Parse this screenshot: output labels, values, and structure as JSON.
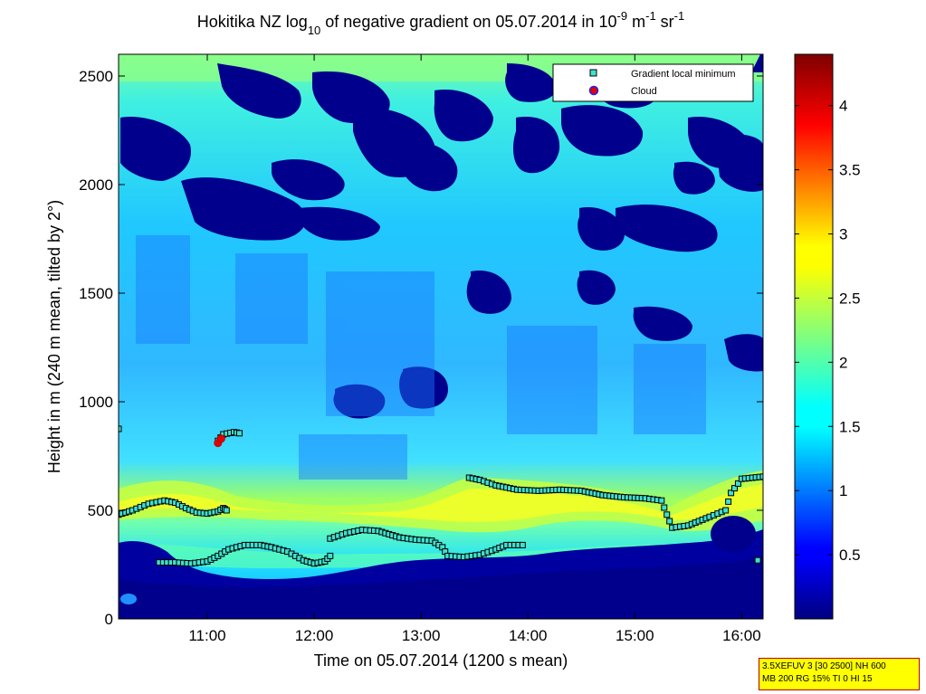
{
  "chart_data": {
    "type": "heatmap",
    "title": {
      "pre": "Hokitika NZ log",
      "sub": "10",
      "mid": " of negative gradient on 05.07.2014 in 10",
      "sup1": "-9",
      "mid2": " m",
      "sup2": "-1",
      "mid3": " sr",
      "sup3": "-1"
    },
    "xlabel": "Time on 05.07.2014 (1200 s mean)",
    "ylabel": "Height in m (240 m mean, tilted by 2°)",
    "xlim": [
      10.17,
      16.2
    ],
    "ylim": [
      0,
      2600
    ],
    "x_ticks": [
      {
        "v": 11,
        "label": "11:00"
      },
      {
        "v": 12,
        "label": "12:00"
      },
      {
        "v": 13,
        "label": "13:00"
      },
      {
        "v": 14,
        "label": "14:00"
      },
      {
        "v": 15,
        "label": "15:00"
      },
      {
        "v": 16,
        "label": "16:00"
      }
    ],
    "y_ticks": [
      0,
      500,
      1000,
      1500,
      2000,
      2500
    ],
    "colorbar": {
      "range": [
        0,
        4.4
      ],
      "ticks": [
        0.5,
        1,
        1.5,
        2,
        2.5,
        3,
        3.5,
        4
      ],
      "colormap": "jet"
    },
    "legend": {
      "position": "top-right",
      "entries": [
        {
          "label": "Gradient local minimum",
          "marker": "square",
          "color": "#40e0d0"
        },
        {
          "label": "Cloud",
          "marker": "circle",
          "color": "#e00000"
        }
      ]
    },
    "series": [
      {
        "name": "Gradient local minimum",
        "segments": [
          [
            [
              10.17,
              480
            ],
            [
              10.3,
              500
            ],
            [
              10.45,
              530
            ],
            [
              10.6,
              545
            ],
            [
              10.7,
              535
            ],
            [
              10.8,
              510
            ],
            [
              10.9,
              490
            ],
            [
              11.0,
              485
            ],
            [
              11.1,
              495
            ],
            [
              11.15,
              510
            ],
            [
              11.18,
              500
            ]
          ],
          [
            [
              10.17,
              875
            ]
          ],
          [
            [
              10.55,
              260
            ],
            [
              10.7,
              260
            ],
            [
              10.85,
              255
            ],
            [
              11.0,
              265
            ],
            [
              11.1,
              290
            ],
            [
              11.2,
              320
            ],
            [
              11.35,
              340
            ],
            [
              11.5,
              340
            ],
            [
              11.6,
              330
            ],
            [
              11.75,
              310
            ],
            [
              11.9,
              270
            ],
            [
              12.0,
              255
            ],
            [
              12.1,
              265
            ],
            [
              12.15,
              290
            ]
          ],
          [
            [
              11.1,
              820
            ],
            [
              11.15,
              850
            ],
            [
              11.25,
              860
            ],
            [
              11.3,
              855
            ]
          ],
          [
            [
              12.15,
              370
            ],
            [
              12.3,
              395
            ],
            [
              12.45,
              410
            ],
            [
              12.6,
              405
            ],
            [
              12.8,
              375
            ],
            [
              12.95,
              365
            ],
            [
              13.1,
              360
            ],
            [
              13.2,
              330
            ],
            [
              13.25,
              290
            ],
            [
              13.4,
              285
            ],
            [
              13.55,
              295
            ],
            [
              13.7,
              320
            ],
            [
              13.8,
              340
            ],
            [
              13.95,
              340
            ]
          ],
          [
            [
              13.45,
              650
            ],
            [
              13.55,
              640
            ],
            [
              13.7,
              615
            ],
            [
              13.9,
              595
            ],
            [
              14.1,
              590
            ],
            [
              14.3,
              595
            ],
            [
              14.5,
              590
            ],
            [
              14.7,
              570
            ],
            [
              14.9,
              560
            ],
            [
              15.1,
              555
            ],
            [
              15.25,
              545
            ],
            [
              15.3,
              480
            ],
            [
              15.35,
              420
            ],
            [
              15.5,
              430
            ],
            [
              15.7,
              470
            ],
            [
              15.85,
              500
            ],
            [
              15.9,
              580
            ],
            [
              16.0,
              645
            ],
            [
              16.1,
              650
            ],
            [
              16.2,
              655
            ]
          ],
          [
            [
              16.15,
              270
            ]
          ]
        ]
      },
      {
        "name": "Cloud",
        "points": [
          [
            11.1,
            810
          ],
          [
            11.13,
            830
          ]
        ]
      }
    ]
  },
  "info_box": {
    "line1": "3.5XEFUV 3 [30 2500] NH 600",
    "line2": "MB 200 RG 15% TI 0 HI 15"
  }
}
